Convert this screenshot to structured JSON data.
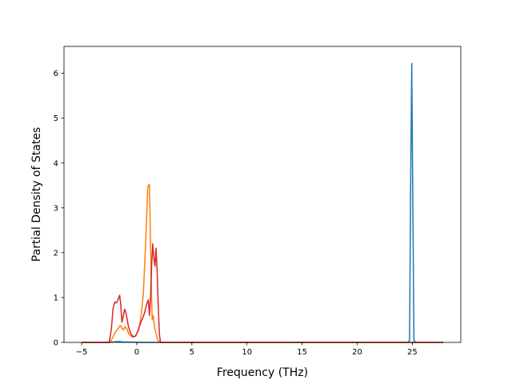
{
  "chart_data": {
    "type": "line",
    "title": "",
    "xlabel": "Frequency (THz)",
    "ylabel": "Partial Density of States",
    "xlim": [
      -6.6,
      29.4
    ],
    "ylim": [
      0,
      6.6
    ],
    "xticks": [
      -5,
      0,
      5,
      10,
      15,
      20,
      25
    ],
    "yticks": [
      0,
      1,
      2,
      3,
      4,
      5,
      6
    ],
    "grid": false,
    "legend": "none",
    "series": [
      {
        "color": "#1f77b4",
        "points": [
          [
            -5.0,
            0
          ],
          [
            -2.5,
            0
          ],
          [
            -2.2,
            0.01
          ],
          [
            -1.6,
            0.02
          ],
          [
            -1.2,
            0.01
          ],
          [
            0.5,
            0.0
          ],
          [
            2.0,
            0.0
          ],
          [
            24.6,
            0.0
          ],
          [
            24.75,
            0.05
          ],
          [
            24.85,
            3.5
          ],
          [
            24.95,
            6.22
          ],
          [
            25.05,
            3.0
          ],
          [
            25.15,
            0.05
          ],
          [
            25.3,
            0.0
          ],
          [
            27.8,
            0.0
          ]
        ]
      },
      {
        "color": "#ff7f0e",
        "points": [
          [
            -5.0,
            0
          ],
          [
            -2.5,
            0
          ],
          [
            -2.3,
            0.05
          ],
          [
            -2.1,
            0.15
          ],
          [
            -1.9,
            0.25
          ],
          [
            -1.7,
            0.3
          ],
          [
            -1.5,
            0.38
          ],
          [
            -1.35,
            0.32
          ],
          [
            -1.2,
            0.28
          ],
          [
            -1.05,
            0.35
          ],
          [
            -0.9,
            0.3
          ],
          [
            -0.7,
            0.18
          ],
          [
            -0.4,
            0.12
          ],
          [
            -0.1,
            0.14
          ],
          [
            0.2,
            0.3
          ],
          [
            0.4,
            0.6
          ],
          [
            0.6,
            1.1
          ],
          [
            0.75,
            1.9
          ],
          [
            0.9,
            2.8
          ],
          [
            1.0,
            3.48
          ],
          [
            1.15,
            3.52
          ],
          [
            1.3,
            1.5
          ],
          [
            1.4,
            0.5
          ],
          [
            1.5,
            0.6
          ],
          [
            1.6,
            0.35
          ],
          [
            1.75,
            0.2
          ],
          [
            1.9,
            0.05
          ],
          [
            2.1,
            0.0
          ],
          [
            27.8,
            0.0
          ]
        ]
      },
      {
        "color": "#d62728",
        "points": [
          [
            -5.0,
            0
          ],
          [
            -2.5,
            0
          ],
          [
            -2.3,
            0.3
          ],
          [
            -2.15,
            0.75
          ],
          [
            -2.0,
            0.9
          ],
          [
            -1.85,
            0.88
          ],
          [
            -1.7,
            0.95
          ],
          [
            -1.55,
            1.05
          ],
          [
            -1.45,
            0.85
          ],
          [
            -1.35,
            0.45
          ],
          [
            -1.25,
            0.55
          ],
          [
            -1.1,
            0.74
          ],
          [
            -1.0,
            0.68
          ],
          [
            -0.9,
            0.55
          ],
          [
            -0.75,
            0.35
          ],
          [
            -0.55,
            0.2
          ],
          [
            -0.3,
            0.12
          ],
          [
            -0.1,
            0.15
          ],
          [
            0.1,
            0.25
          ],
          [
            0.3,
            0.4
          ],
          [
            0.55,
            0.55
          ],
          [
            0.7,
            0.65
          ],
          [
            0.9,
            0.85
          ],
          [
            1.05,
            0.95
          ],
          [
            1.15,
            0.6
          ],
          [
            1.25,
            1.0
          ],
          [
            1.35,
            1.7
          ],
          [
            1.45,
            2.2
          ],
          [
            1.55,
            1.9
          ],
          [
            1.65,
            1.7
          ],
          [
            1.75,
            2.1
          ],
          [
            1.85,
            1.6
          ],
          [
            1.95,
            0.8
          ],
          [
            2.05,
            0.2
          ],
          [
            2.15,
            0.0
          ],
          [
            27.8,
            0.0
          ]
        ]
      }
    ]
  }
}
